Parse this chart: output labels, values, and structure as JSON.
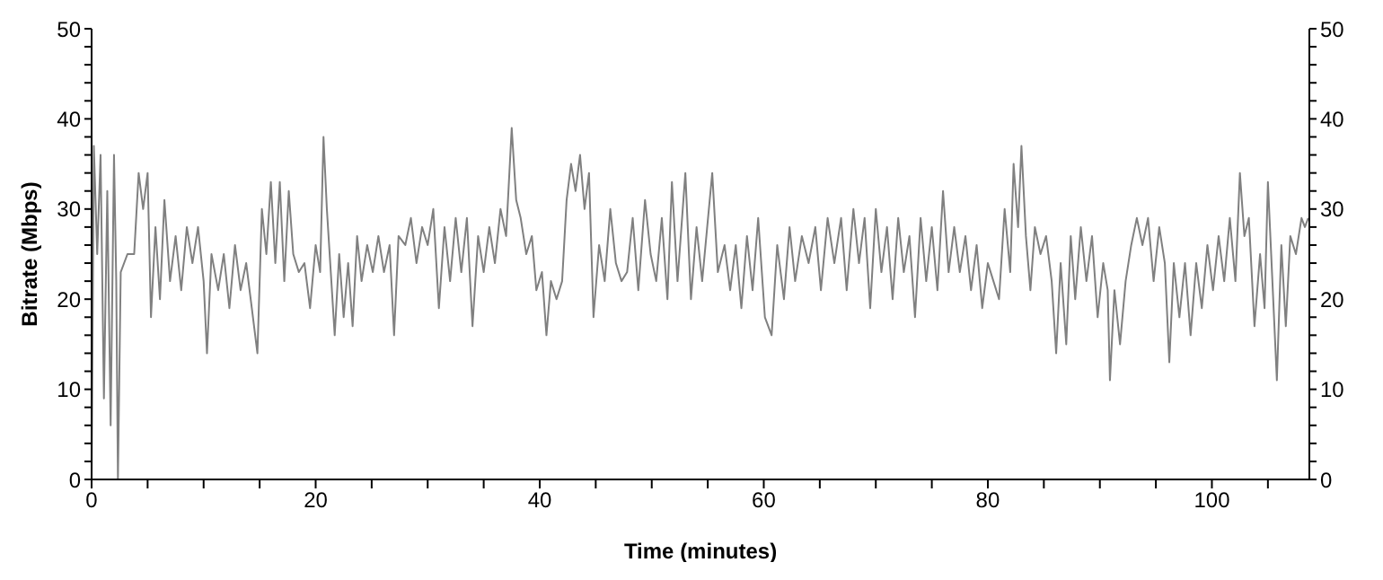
{
  "chart_data": {
    "type": "line",
    "xlabel": "Time (minutes)",
    "ylabel": "Bitrate (Mbps)",
    "xlim": [
      0,
      108.7
    ],
    "xticks": [
      0,
      {
        "value": 5,
        "label": null
      },
      {
        "value": 10,
        "label": null
      },
      {
        "value": 15,
        "label": null
      },
      20,
      {
        "value": 25,
        "label": null
      },
      {
        "value": 30,
        "label": null
      },
      {
        "value": 35,
        "label": null
      },
      40,
      {
        "value": 45,
        "label": null
      },
      {
        "value": 50,
        "label": null
      },
      {
        "value": 55,
        "label": null
      },
      60,
      {
        "value": 65,
        "label": null
      },
      {
        "value": 70,
        "label": null
      },
      {
        "value": 75,
        "label": null
      },
      80,
      {
        "value": 85,
        "label": null
      },
      {
        "value": 90,
        "label": null
      },
      {
        "value": 95,
        "label": null
      },
      100,
      {
        "value": 105,
        "label": null
      }
    ],
    "ylim": [
      0,
      50
    ],
    "yticks": [
      0,
      {
        "value": 2,
        "label": null
      },
      {
        "value": 4,
        "label": null
      },
      {
        "value": 6,
        "label": null
      },
      {
        "value": 8,
        "label": null
      },
      10,
      {
        "value": 12,
        "label": null
      },
      {
        "value": 14,
        "label": null
      },
      {
        "value": 16,
        "label": null
      },
      {
        "value": 18,
        "label": null
      },
      20,
      {
        "value": 22,
        "label": null
      },
      {
        "value": 24,
        "label": null
      },
      {
        "value": 26,
        "label": null
      },
      {
        "value": 28,
        "label": null
      },
      30,
      {
        "value": 32,
        "label": null
      },
      {
        "value": 34,
        "label": null
      },
      {
        "value": 36,
        "label": null
      },
      {
        "value": 38,
        "label": null
      },
      40,
      {
        "value": 42,
        "label": null
      },
      {
        "value": 44,
        "label": null
      },
      {
        "value": 46,
        "label": null
      },
      {
        "value": 48,
        "label": null
      },
      50
    ],
    "y2lim": [
      0,
      50
    ],
    "y2ticks": [
      0,
      {
        "value": 2,
        "label": null
      },
      {
        "value": 4,
        "label": null
      },
      {
        "value": 6,
        "label": null
      },
      {
        "value": 8,
        "label": null
      },
      10,
      {
        "value": 12,
        "label": null
      },
      {
        "value": 14,
        "label": null
      },
      {
        "value": 16,
        "label": null
      },
      {
        "value": 18,
        "label": null
      },
      20,
      {
        "value": 22,
        "label": null
      },
      {
        "value": 24,
        "label": null
      },
      {
        "value": 26,
        "label": null
      },
      {
        "value": 28,
        "label": null
      },
      30,
      {
        "value": 32,
        "label": null
      },
      {
        "value": 34,
        "label": null
      },
      {
        "value": 36,
        "label": null
      },
      {
        "value": 38,
        "label": null
      },
      40,
      {
        "value": 42,
        "label": null
      },
      {
        "value": 44,
        "label": null
      },
      {
        "value": 46,
        "label": null
      },
      {
        "value": 48,
        "label": null
      },
      50
    ],
    "grid": false,
    "legend": false,
    "marker": "none",
    "line_style": "solid",
    "x": [
      0,
      0.2,
      0.5,
      0.8,
      1.1,
      1.4,
      1.7,
      2.0,
      2.2,
      2.35,
      2.6,
      3.2,
      3.8,
      4.2,
      4.6,
      5.0,
      5.3,
      5.7,
      6.1,
      6.5,
      7.0,
      7.5,
      8.0,
      8.5,
      9.0,
      9.5,
      10.0,
      10.3,
      10.7,
      11.3,
      11.8,
      12.3,
      12.8,
      13.3,
      13.8,
      14.3,
      14.8,
      15.2,
      15.6,
      16.0,
      16.4,
      16.8,
      17.2,
      17.6,
      18.0,
      18.5,
      19.0,
      19.5,
      20.0,
      20.4,
      20.7,
      21.0,
      21.3,
      21.7,
      22.1,
      22.5,
      22.9,
      23.3,
      23.7,
      24.1,
      24.6,
      25.1,
      25.6,
      26.1,
      26.6,
      27.0,
      27.4,
      28.0,
      28.5,
      29.0,
      29.5,
      30.0,
      30.5,
      31.0,
      31.5,
      32.0,
      32.5,
      33.0,
      33.5,
      34.0,
      34.5,
      35.0,
      35.5,
      36.0,
      36.5,
      37.0,
      37.5,
      37.9,
      38.3,
      38.8,
      39.3,
      39.7,
      40.2,
      40.6,
      41.0,
      41.5,
      42.0,
      42.4,
      42.8,
      43.2,
      43.6,
      44.0,
      44.4,
      44.8,
      45.3,
      45.8,
      46.3,
      46.8,
      47.3,
      47.8,
      48.3,
      48.8,
      49.4,
      49.9,
      50.4,
      50.9,
      51.4,
      51.8,
      52.3,
      53.0,
      53.5,
      54.0,
      54.5,
      55.4,
      55.9,
      56.5,
      57.0,
      57.5,
      58.0,
      58.5,
      59.0,
      59.5,
      60.1,
      60.7,
      61.2,
      61.8,
      62.3,
      62.8,
      63.4,
      64.0,
      64.6,
      65.1,
      65.7,
      66.3,
      66.9,
      67.4,
      68.0,
      68.5,
      69.0,
      69.5,
      70.0,
      70.5,
      71.0,
      71.5,
      72.0,
      72.5,
      73.0,
      73.5,
      74.0,
      74.5,
      75.0,
      75.5,
      76.0,
      76.5,
      77.0,
      77.5,
      78.0,
      78.5,
      79.0,
      79.5,
      80.0,
      80.5,
      81.0,
      81.5,
      82.0,
      82.3,
      82.7,
      83.0,
      83.4,
      83.8,
      84.2,
      84.7,
      85.2,
      85.7,
      86.1,
      86.5,
      87.0,
      87.4,
      87.8,
      88.3,
      88.8,
      89.3,
      89.8,
      90.3,
      90.7,
      90.9,
      91.3,
      91.8,
      92.3,
      92.8,
      93.3,
      93.8,
      94.3,
      94.8,
      95.3,
      95.8,
      96.2,
      96.6,
      97.1,
      97.6,
      98.1,
      98.6,
      99.1,
      99.6,
      100.1,
      100.6,
      101.1,
      101.6,
      102.1,
      102.5,
      102.9,
      103.3,
      103.8,
      104.3,
      104.7,
      105.0,
      105.4,
      105.8,
      106.2,
      106.6,
      107.0,
      107.5,
      108.0,
      108.3,
      108.6
    ],
    "series": [
      {
        "color": "#808080",
        "values": [
          0,
          37,
          25,
          36,
          9,
          32,
          6,
          36,
          22,
          0,
          23,
          25,
          25,
          34,
          30,
          34,
          18,
          28,
          20,
          31,
          22,
          27,
          21,
          28,
          24,
          28,
          22,
          14,
          25,
          21,
          25,
          19,
          26,
          21,
          24,
          19,
          14,
          30,
          25,
          33,
          24,
          33,
          22,
          32,
          25,
          23,
          24,
          19,
          26,
          23,
          38,
          30,
          24,
          16,
          25,
          18,
          24,
          17,
          27,
          22,
          26,
          23,
          27,
          23,
          26,
          16,
          27,
          26,
          29,
          24,
          28,
          26,
          30,
          19,
          28,
          22,
          29,
          23,
          29,
          17,
          27,
          23,
          28,
          24,
          30,
          27,
          39,
          31,
          29,
          25,
          27,
          21,
          23,
          16,
          22,
          20,
          22,
          31,
          35,
          32,
          36,
          30,
          34,
          18,
          26,
          22,
          30,
          24,
          22,
          23,
          29,
          21,
          31,
          25,
          22,
          29,
          20,
          33,
          22,
          34,
          20,
          28,
          22,
          34,
          23,
          26,
          21,
          26,
          19,
          27,
          21,
          29,
          18,
          16,
          26,
          20,
          28,
          22,
          27,
          24,
          28,
          21,
          29,
          24,
          29,
          21,
          30,
          24,
          29,
          19,
          30,
          23,
          28,
          20,
          29,
          23,
          27,
          18,
          29,
          22,
          28,
          21,
          32,
          23,
          28,
          23,
          27,
          21,
          26,
          19,
          24,
          22,
          20,
          30,
          23,
          35,
          28,
          37,
          27,
          21,
          28,
          25,
          27,
          22,
          14,
          24,
          15,
          27,
          20,
          28,
          22,
          27,
          18,
          24,
          21,
          11,
          21,
          15,
          22,
          26,
          29,
          26,
          29,
          22,
          28,
          24,
          13,
          24,
          18,
          24,
          16,
          24,
          19,
          26,
          21,
          27,
          22,
          29,
          22,
          34,
          27,
          29,
          17,
          25,
          19,
          33,
          22,
          11,
          26,
          17,
          27,
          25,
          29,
          28,
          29
        ]
      }
    ]
  }
}
